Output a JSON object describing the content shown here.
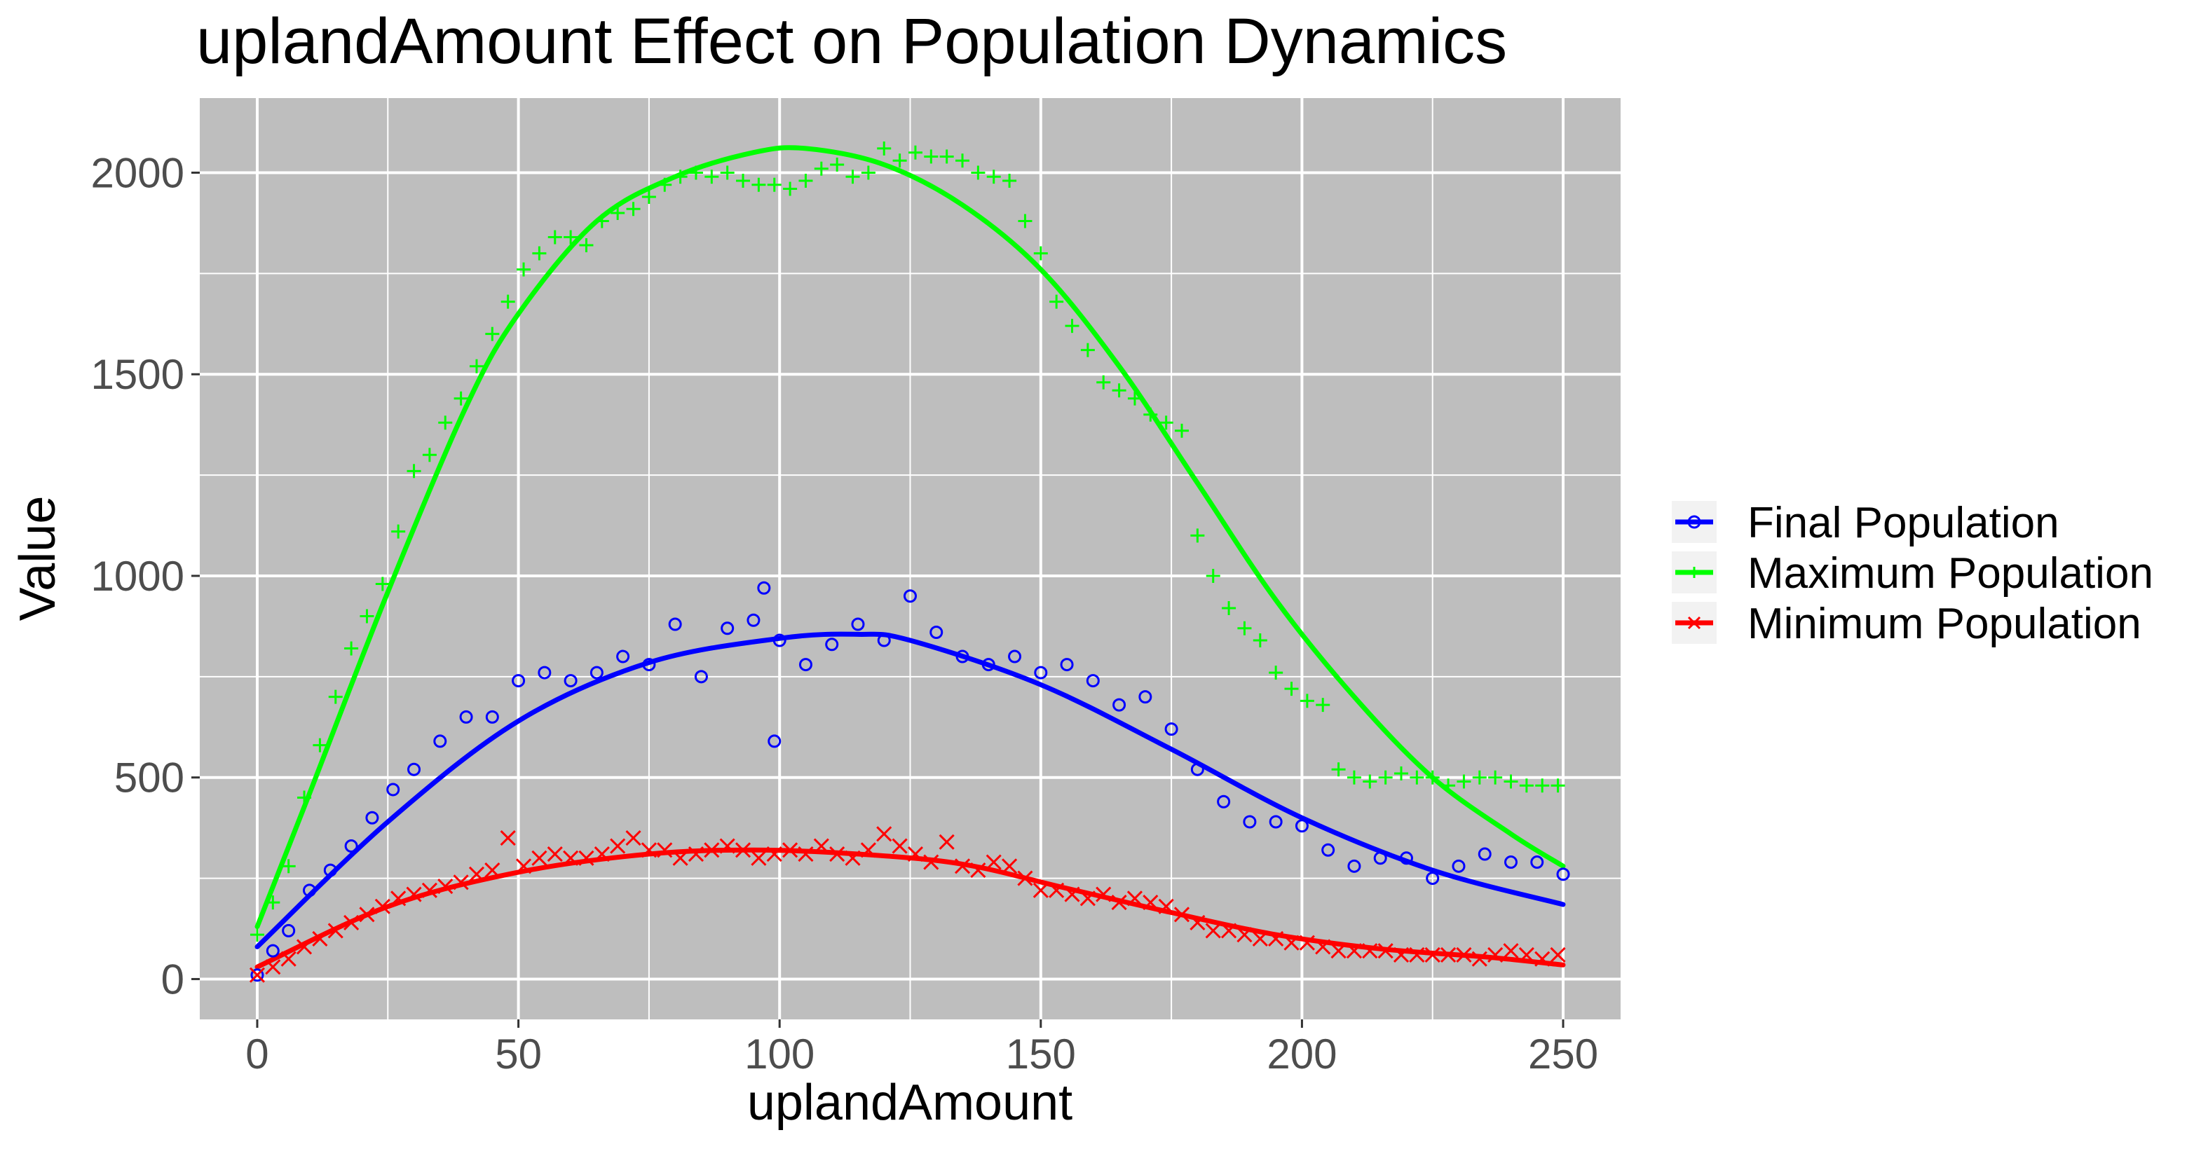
{
  "chart_data": {
    "type": "scatter",
    "title": "uplandAmount Effect on Population Dynamics",
    "xlabel": "uplandAmount",
    "ylabel": "Value",
    "xlim": [
      -11,
      261
    ],
    "ylim": [
      -100,
      2185
    ],
    "xticks": [
      0,
      50,
      100,
      150,
      200,
      250
    ],
    "yticks": [
      0,
      500,
      1000,
      1500,
      2000
    ],
    "grid": true,
    "legend_position": "right",
    "background": "#bebebe",
    "series": [
      {
        "name": "Final Population",
        "color": "#0000ff",
        "marker": "circle",
        "x": [
          0,
          3,
          6,
          10,
          14,
          18,
          22,
          26,
          30,
          35,
          40,
          45,
          50,
          55,
          60,
          65,
          70,
          75,
          80,
          85,
          90,
          95,
          97,
          99,
          100,
          105,
          110,
          115,
          120,
          125,
          130,
          135,
          140,
          145,
          150,
          155,
          160,
          165,
          170,
          175,
          180,
          185,
          190,
          195,
          200,
          205,
          210,
          215,
          220,
          225,
          230,
          235,
          240,
          245,
          250
        ],
        "y": [
          10,
          70,
          120,
          220,
          270,
          330,
          400,
          470,
          520,
          590,
          650,
          650,
          740,
          760,
          740,
          760,
          800,
          780,
          880,
          750,
          870,
          890,
          970,
          590,
          840,
          780,
          830,
          880,
          840,
          950,
          860,
          800,
          780,
          800,
          760,
          780,
          740,
          680,
          700,
          620,
          520,
          440,
          390,
          390,
          380,
          320,
          280,
          300,
          300,
          250,
          280,
          310,
          290,
          290,
          260
        ],
        "fit": [
          [
            0,
            80
          ],
          [
            25,
            390
          ],
          [
            50,
            640
          ],
          [
            75,
            785
          ],
          [
            100,
            845
          ],
          [
            115,
            855
          ],
          [
            125,
            840
          ],
          [
            150,
            730
          ],
          [
            175,
            570
          ],
          [
            200,
            400
          ],
          [
            225,
            270
          ],
          [
            250,
            185
          ]
        ]
      },
      {
        "name": "Maximum Population",
        "color": "#00ff00",
        "marker": "plus",
        "x": [
          0,
          3,
          6,
          9,
          12,
          15,
          18,
          21,
          24,
          27,
          30,
          33,
          36,
          39,
          42,
          45,
          48,
          51,
          54,
          57,
          60,
          63,
          66,
          69,
          72,
          75,
          78,
          81,
          84,
          87,
          90,
          93,
          96,
          99,
          102,
          105,
          108,
          111,
          114,
          117,
          120,
          123,
          126,
          129,
          132,
          135,
          138,
          141,
          144,
          147,
          150,
          153,
          156,
          159,
          162,
          165,
          168,
          171,
          174,
          177,
          180,
          183,
          186,
          189,
          192,
          195,
          198,
          201,
          204,
          207,
          210,
          213,
          216,
          219,
          222,
          225,
          228,
          231,
          234,
          237,
          240,
          243,
          246,
          249
        ],
        "y": [
          110,
          190,
          280,
          450,
          580,
          700,
          820,
          900,
          980,
          1110,
          1260,
          1300,
          1380,
          1440,
          1520,
          1600,
          1680,
          1760,
          1800,
          1840,
          1840,
          1820,
          1880,
          1900,
          1910,
          1940,
          1970,
          1990,
          2000,
          1990,
          2000,
          1980,
          1970,
          1970,
          1960,
          1980,
          2010,
          2020,
          1990,
          2000,
          2060,
          2030,
          2050,
          2040,
          2040,
          2030,
          2000,
          1990,
          1980,
          1880,
          1800,
          1680,
          1620,
          1560,
          1480,
          1460,
          1440,
          1400,
          1380,
          1360,
          1100,
          1000,
          920,
          870,
          840,
          760,
          720,
          690,
          680,
          520,
          500,
          490,
          500,
          510,
          500,
          500,
          480,
          490,
          500,
          500,
          490,
          480,
          480,
          480
        ],
        "fit": [
          [
            0,
            130
          ],
          [
            10,
            460
          ],
          [
            25,
            960
          ],
          [
            40,
            1420
          ],
          [
            50,
            1650
          ],
          [
            65,
            1880
          ],
          [
            80,
            1990
          ],
          [
            95,
            2050
          ],
          [
            105,
            2060
          ],
          [
            120,
            2020
          ],
          [
            135,
            1920
          ],
          [
            150,
            1760
          ],
          [
            165,
            1520
          ],
          [
            180,
            1230
          ],
          [
            195,
            940
          ],
          [
            210,
            700
          ],
          [
            225,
            500
          ],
          [
            240,
            360
          ],
          [
            250,
            280
          ]
        ]
      },
      {
        "name": "Minimum Population",
        "color": "#ff0000",
        "marker": "x",
        "x": [
          0,
          3,
          6,
          9,
          12,
          15,
          18,
          21,
          24,
          27,
          30,
          33,
          36,
          39,
          42,
          45,
          48,
          51,
          54,
          57,
          60,
          63,
          66,
          69,
          72,
          75,
          78,
          81,
          84,
          87,
          90,
          93,
          96,
          99,
          102,
          105,
          108,
          111,
          114,
          117,
          120,
          123,
          126,
          129,
          132,
          135,
          138,
          141,
          144,
          147,
          150,
          153,
          156,
          159,
          162,
          165,
          168,
          171,
          174,
          177,
          180,
          183,
          186,
          189,
          192,
          195,
          198,
          201,
          204,
          207,
          210,
          213,
          216,
          219,
          222,
          225,
          228,
          231,
          234,
          237,
          240,
          243,
          246,
          249
        ],
        "y": [
          10,
          30,
          50,
          80,
          100,
          120,
          140,
          160,
          180,
          200,
          210,
          220,
          230,
          240,
          260,
          270,
          350,
          280,
          300,
          310,
          300,
          300,
          310,
          330,
          350,
          320,
          320,
          300,
          310,
          320,
          330,
          320,
          300,
          310,
          320,
          310,
          330,
          310,
          300,
          320,
          360,
          330,
          310,
          290,
          340,
          280,
          270,
          290,
          280,
          250,
          220,
          220,
          210,
          200,
          210,
          190,
          200,
          190,
          180,
          160,
          140,
          120,
          120,
          110,
          100,
          100,
          90,
          90,
          80,
          70,
          70,
          70,
          70,
          60,
          60,
          60,
          60,
          60,
          50,
          60,
          70,
          60,
          50,
          60
        ],
        "fit": [
          [
            0,
            30
          ],
          [
            25,
            180
          ],
          [
            50,
            265
          ],
          [
            75,
            310
          ],
          [
            95,
            320
          ],
          [
            115,
            310
          ],
          [
            135,
            285
          ],
          [
            155,
            225
          ],
          [
            175,
            165
          ],
          [
            195,
            110
          ],
          [
            215,
            75
          ],
          [
            235,
            55
          ],
          [
            250,
            35
          ]
        ]
      }
    ]
  }
}
